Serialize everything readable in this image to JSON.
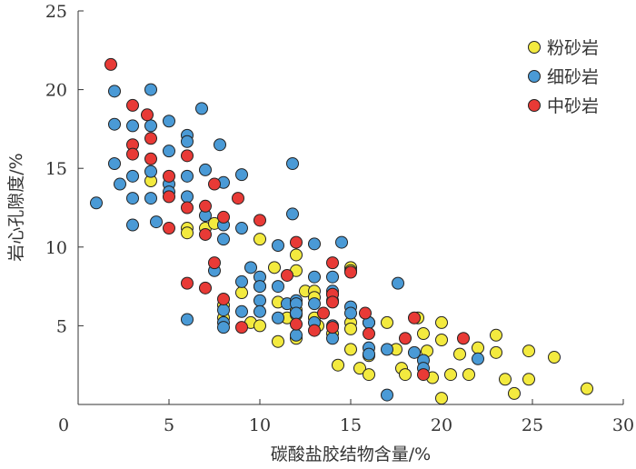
{
  "chart_data": {
    "type": "scatter",
    "title": "",
    "xlabel": "碳酸盐胶结物含量/%",
    "ylabel": "岩心孔隙度/%",
    "xlim": [
      0,
      30
    ],
    "ylim": [
      0,
      25
    ],
    "xticks": [
      "0",
      "5",
      "10",
      "15",
      "20",
      "25",
      "30"
    ],
    "yticks": [
      "5",
      "10",
      "15",
      "20",
      "25"
    ],
    "grid": false,
    "legend_position": "top-right",
    "series": [
      {
        "name": "粉砂岩",
        "color": "#f3ea3f",
        "points": [
          [
            4,
            14.2
          ],
          [
            6,
            11.2
          ],
          [
            6,
            10.9
          ],
          [
            7,
            11.2
          ],
          [
            7.5,
            11.5
          ],
          [
            8,
            6.3
          ],
          [
            8,
            5.5
          ],
          [
            9,
            7.1
          ],
          [
            9.5,
            5.2
          ],
          [
            10,
            10.5
          ],
          [
            10,
            7.5
          ],
          [
            10,
            5
          ],
          [
            10.8,
            8.7
          ],
          [
            11,
            6.5
          ],
          [
            11,
            4
          ],
          [
            11.5,
            5.5
          ],
          [
            12,
            9.5
          ],
          [
            12,
            8.5
          ],
          [
            12,
            6
          ],
          [
            12,
            5.7
          ],
          [
            12,
            4.2
          ],
          [
            12.5,
            7.2
          ],
          [
            13,
            7.2
          ],
          [
            13,
            6.8
          ],
          [
            13,
            5.5
          ],
          [
            13.2,
            5
          ],
          [
            14,
            7
          ],
          [
            14,
            4.5
          ],
          [
            14.3,
            2.5
          ],
          [
            15,
            8.7
          ],
          [
            15,
            8.5
          ],
          [
            15,
            5.2
          ],
          [
            15,
            4.8
          ],
          [
            15,
            3.5
          ],
          [
            15.5,
            2.3
          ],
          [
            16,
            5.2
          ],
          [
            16,
            3.1
          ],
          [
            16,
            1.9
          ],
          [
            17,
            5.2
          ],
          [
            17.5,
            3.5
          ],
          [
            17.8,
            2.3
          ],
          [
            18,
            1.9
          ],
          [
            18.7,
            5.5
          ],
          [
            19,
            4.5
          ],
          [
            19.2,
            3.4
          ],
          [
            19.5,
            1.7
          ],
          [
            20,
            5.2
          ],
          [
            20,
            4.1
          ],
          [
            20,
            0.4
          ],
          [
            20.5,
            1.9
          ],
          [
            21,
            3.2
          ],
          [
            21.5,
            1.9
          ],
          [
            22,
            3.6
          ],
          [
            23,
            4.4
          ],
          [
            23,
            3.3
          ],
          [
            23.5,
            1.6
          ],
          [
            24,
            0.7
          ],
          [
            24.8,
            3.4
          ],
          [
            24.8,
            1.6
          ],
          [
            26.2,
            3
          ],
          [
            28,
            1
          ]
        ]
      },
      {
        "name": "细砂岩",
        "color": "#4a9ad6",
        "points": [
          [
            1,
            12.8
          ],
          [
            2,
            19.9
          ],
          [
            2,
            17.8
          ],
          [
            2,
            15.3
          ],
          [
            2.3,
            14
          ],
          [
            3,
            17.7
          ],
          [
            3,
            14.5
          ],
          [
            3,
            13.1
          ],
          [
            3,
            11.4
          ],
          [
            4,
            20
          ],
          [
            4,
            17.7
          ],
          [
            4,
            14.8
          ],
          [
            4,
            13.1
          ],
          [
            4.3,
            11.6
          ],
          [
            5,
            18
          ],
          [
            5,
            16.1
          ],
          [
            5,
            14
          ],
          [
            5,
            13.5
          ],
          [
            6,
            17.1
          ],
          [
            6,
            16.7
          ],
          [
            6,
            14.5
          ],
          [
            6,
            13.2
          ],
          [
            6,
            5.4
          ],
          [
            6.8,
            18.8
          ],
          [
            7,
            14.9
          ],
          [
            7,
            12
          ],
          [
            7.5,
            8.5
          ],
          [
            7.8,
            16.5
          ],
          [
            8,
            14.1
          ],
          [
            8,
            11.4
          ],
          [
            8,
            10.5
          ],
          [
            8,
            6
          ],
          [
            8,
            5.2
          ],
          [
            8,
            4.9
          ],
          [
            9,
            14.6
          ],
          [
            9,
            11.2
          ],
          [
            9,
            7.8
          ],
          [
            9,
            5.9
          ],
          [
            9.5,
            8.7
          ],
          [
            10,
            8.1
          ],
          [
            10,
            7.5
          ],
          [
            10,
            6.6
          ],
          [
            10,
            5.9
          ],
          [
            11,
            10.1
          ],
          [
            11,
            7.5
          ],
          [
            11,
            5.5
          ],
          [
            11.5,
            6.4
          ],
          [
            11.8,
            15.3
          ],
          [
            11.8,
            12.1
          ],
          [
            12,
            6.6
          ],
          [
            12,
            6.4
          ],
          [
            12,
            5.8
          ],
          [
            12,
            4.4
          ],
          [
            13,
            10.2
          ],
          [
            13,
            8.1
          ],
          [
            13,
            6.4
          ],
          [
            13,
            5.2
          ],
          [
            14,
            8.1
          ],
          [
            14,
            7.2
          ],
          [
            14,
            6.6
          ],
          [
            14,
            5
          ],
          [
            14,
            4.2
          ],
          [
            14.5,
            10.3
          ],
          [
            15,
            6.2
          ],
          [
            15,
            5.8
          ],
          [
            16,
            5.2
          ],
          [
            16,
            3.6
          ],
          [
            16,
            3.2
          ],
          [
            17,
            3.5
          ],
          [
            17,
            0.6
          ],
          [
            17.6,
            7.7
          ],
          [
            18.5,
            3.3
          ],
          [
            19,
            2.8
          ],
          [
            19,
            2.3
          ],
          [
            22,
            2.9
          ]
        ]
      },
      {
        "name": "中砂岩",
        "color": "#e83a36",
        "points": [
          [
            1.8,
            21.6
          ],
          [
            3,
            19
          ],
          [
            3,
            16.5
          ],
          [
            3,
            15.9
          ],
          [
            3.8,
            18.4
          ],
          [
            4,
            16.9
          ],
          [
            4,
            15.6
          ],
          [
            5,
            14.5
          ],
          [
            5,
            13.2
          ],
          [
            5,
            11.2
          ],
          [
            6,
            15.8
          ],
          [
            6,
            12.5
          ],
          [
            6,
            7.7
          ],
          [
            7,
            12.6
          ],
          [
            7,
            10.8
          ],
          [
            7,
            7.4
          ],
          [
            7.5,
            14
          ],
          [
            7.5,
            9
          ],
          [
            8,
            11.9
          ],
          [
            8,
            6.7
          ],
          [
            8.8,
            13.1
          ],
          [
            9,
            4.9
          ],
          [
            10,
            11.7
          ],
          [
            11.5,
            8.2
          ],
          [
            12,
            10.3
          ],
          [
            12,
            5.1
          ],
          [
            13,
            4.7
          ],
          [
            13.5,
            5.8
          ],
          [
            14,
            9
          ],
          [
            14,
            7
          ],
          [
            14,
            6.5
          ],
          [
            14,
            4.9
          ],
          [
            15,
            8.4
          ],
          [
            15.8,
            5.8
          ],
          [
            16,
            4.5
          ],
          [
            18,
            4.2
          ],
          [
            18.5,
            5.5
          ],
          [
            19,
            1.9
          ],
          [
            21.2,
            4.2
          ]
        ]
      }
    ]
  }
}
